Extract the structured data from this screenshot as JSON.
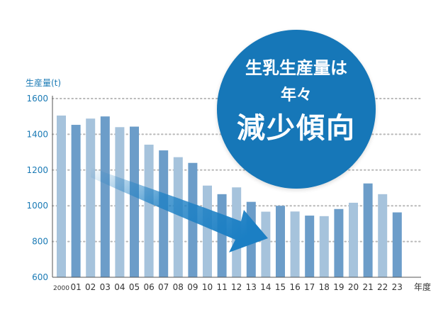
{
  "chart_data": {
    "type": "bar",
    "ylabel": "生産量(t)",
    "x_unit": "年度",
    "categories": [
      "2000",
      "01",
      "02",
      "03",
      "04",
      "05",
      "06",
      "07",
      "08",
      "09",
      "10",
      "11",
      "12",
      "13",
      "14",
      "15",
      "16",
      "17",
      "18",
      "19",
      "20",
      "21",
      "22",
      "23"
    ],
    "values": [
      1505,
      1453,
      1488,
      1500,
      1440,
      1443,
      1342,
      1310,
      1272,
      1240,
      1113,
      1065,
      1103,
      1022,
      967,
      1000,
      968,
      945,
      942,
      982,
      1017,
      1125,
      1065,
      963
    ],
    "ylim": [
      600,
      1600
    ],
    "yticks": [
      600,
      800,
      1000,
      1200,
      1400,
      1600
    ],
    "grid": true,
    "colors": {
      "bar_light": "#a6c3dc",
      "bar_dark": "#6c9dc9",
      "axis_text": "#1a7ab5",
      "grid": "#b8b8b8",
      "arrow": "#1b7fc4"
    }
  },
  "badge": {
    "line1": "生乳生産量は",
    "line2": "年々",
    "line3": "減少傾向",
    "color": "#1677b8"
  }
}
